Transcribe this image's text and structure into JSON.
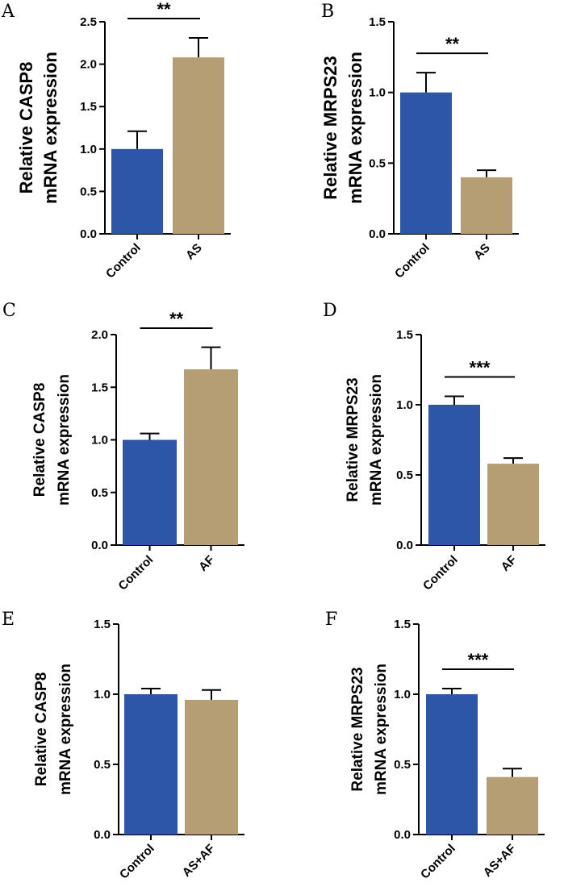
{
  "colors": {
    "control": "#2e56a8",
    "treatment": "#b69e74"
  },
  "chart_data": [
    {
      "panel": "A",
      "type": "bar",
      "categories": [
        "Control",
        "AS"
      ],
      "values": [
        1.0,
        2.08
      ],
      "errors": [
        0.21,
        0.23
      ],
      "ylabel_line1": "Relative CASP8",
      "ylabel_line2": "mRNA expression",
      "ylim": [
        0,
        2.5
      ],
      "yticks": [
        "0.0",
        "0.5",
        "1.0",
        "1.5",
        "2.0",
        "2.5"
      ],
      "significance": "**"
    },
    {
      "panel": "B",
      "type": "bar",
      "categories": [
        "Control",
        "AS"
      ],
      "values": [
        1.0,
        0.4
      ],
      "errors": [
        0.14,
        0.05
      ],
      "ylabel_line1": "Relative MRPS23",
      "ylabel_line2": "mRNA expression",
      "ylim": [
        0,
        1.5
      ],
      "yticks": [
        "0.0",
        "0.5",
        "1.0",
        "1.5"
      ],
      "significance": "**"
    },
    {
      "panel": "C",
      "type": "bar",
      "categories": [
        "Control",
        "AF"
      ],
      "values": [
        1.0,
        1.67
      ],
      "errors": [
        0.06,
        0.21
      ],
      "ylabel_line1": "Relative CASP8",
      "ylabel_line2": "mRNA expression",
      "ylim": [
        0,
        2.0
      ],
      "yticks": [
        "0.0",
        "0.5",
        "1.0",
        "1.5",
        "2.0"
      ],
      "significance": "**"
    },
    {
      "panel": "D",
      "type": "bar",
      "categories": [
        "Control",
        "AF"
      ],
      "values": [
        1.0,
        0.58
      ],
      "errors": [
        0.06,
        0.04
      ],
      "ylabel_line1": "Relative MRPS23",
      "ylabel_line2": "mRNA expression",
      "ylim": [
        0,
        1.5
      ],
      "yticks": [
        "0.0",
        "0.5",
        "1.0",
        "1.5"
      ],
      "significance": "***"
    },
    {
      "panel": "E",
      "type": "bar",
      "categories": [
        "Control",
        "AS+AF"
      ],
      "values": [
        1.0,
        0.96
      ],
      "errors": [
        0.04,
        0.07
      ],
      "ylabel_line1": "Relative CASP8",
      "ylabel_line2": "mRNA expression",
      "ylim": [
        0,
        1.5
      ],
      "yticks": [
        "0.0",
        "0.5",
        "1.0",
        "1.5"
      ],
      "significance": ""
    },
    {
      "panel": "F",
      "type": "bar",
      "categories": [
        "Control",
        "AS+AF"
      ],
      "values": [
        1.0,
        0.41
      ],
      "errors": [
        0.04,
        0.06
      ],
      "ylabel_line1": "Relative MRPS23",
      "ylabel_line2": "mRNA expression",
      "ylim": [
        0,
        1.5
      ],
      "yticks": [
        "0.0",
        "0.5",
        "1.0",
        "1.5"
      ],
      "significance": "***"
    }
  ]
}
